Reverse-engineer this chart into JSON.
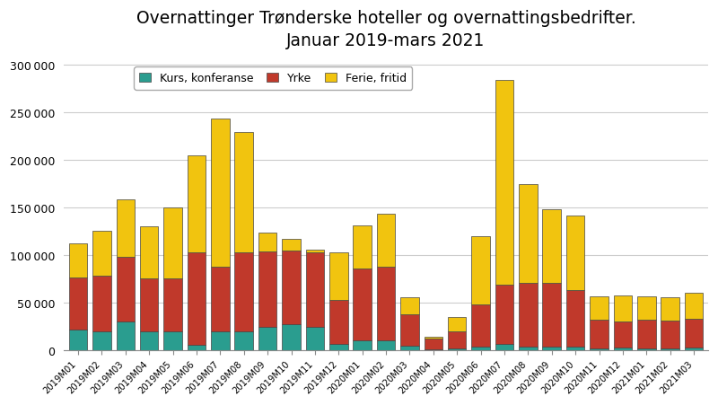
{
  "title": "Overnattinger Trønderske hoteller og overnattingsbedrifter.\nJanuar 2019-mars 2021",
  "categories": [
    "2019M01",
    "2019M02",
    "2019M03",
    "2019M04",
    "2019M05",
    "2019M06",
    "2019M07",
    "2019M08",
    "2019M09",
    "2019M10",
    "2019M11",
    "2019M12",
    "2020M01",
    "2020M02",
    "2020M03",
    "2020M04",
    "2020M05",
    "2020M06",
    "2020M07",
    "2020M08",
    "2020M09",
    "2020M10",
    "2020M11",
    "2020M12",
    "2021M01",
    "2021M02",
    "2021M03"
  ],
  "kurs_konferanse": [
    22000,
    20000,
    30000,
    20000,
    20000,
    6000,
    20000,
    20000,
    25000,
    27000,
    25000,
    7000,
    10000,
    10000,
    5000,
    1000,
    2000,
    4000,
    7000,
    4000,
    4000,
    3500,
    2000,
    2500,
    2000,
    1500,
    2500
  ],
  "yrke": [
    54000,
    58000,
    68000,
    55000,
    55000,
    97000,
    68000,
    83000,
    79000,
    78000,
    78000,
    46000,
    76000,
    78000,
    33000,
    11000,
    18000,
    44000,
    62000,
    67000,
    67000,
    60000,
    30000,
    28000,
    30000,
    30000,
    31000
  ],
  "ferie_fritid": [
    36000,
    47000,
    60000,
    55000,
    75000,
    102000,
    155000,
    126000,
    20000,
    12000,
    3000,
    50000,
    45000,
    55000,
    18000,
    2000,
    15000,
    72000,
    215000,
    103000,
    77000,
    78000,
    25000,
    27000,
    25000,
    24000,
    27000
  ],
  "color_kurs": "#2a9d8f",
  "color_yrke": "#c0392b",
  "color_ferie": "#f1c40f",
  "legend_labels": [
    "Kurs, konferanse",
    "Yrke",
    "Ferie, fritid"
  ],
  "ylim": [
    0,
    310000
  ],
  "yticks": [
    0,
    50000,
    100000,
    150000,
    200000,
    250000,
    300000
  ],
  "background_color": "#ffffff",
  "title_fontsize": 13.5
}
